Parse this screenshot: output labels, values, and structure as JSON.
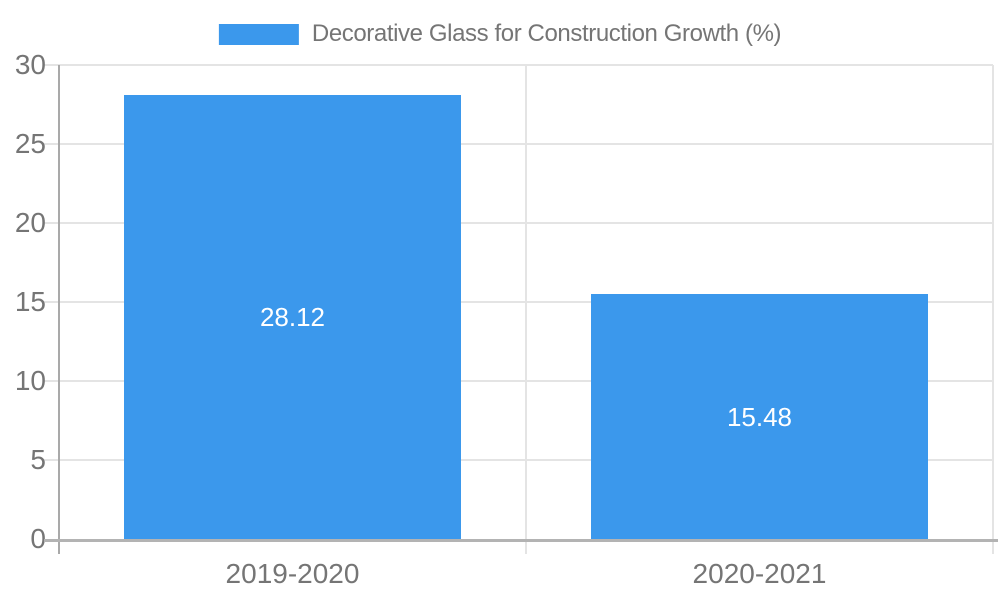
{
  "chart_data": {
    "type": "bar",
    "title": "Decorative Glass for Construction Growth (%)",
    "series_name": "Decorative Glass for Construction Growth (%)",
    "categories": [
      "2019-2020",
      "2020-2021"
    ],
    "values": [
      28.12,
      15.48
    ],
    "value_labels": [
      "28.12",
      "15.48"
    ],
    "xlabel": "",
    "ylabel": "",
    "ylim": [
      0,
      30
    ],
    "yticks": [
      0,
      5,
      10,
      15,
      20,
      25,
      30
    ],
    "grid": true,
    "legend_position": "top-center",
    "colors": {
      "bar": "#3B98EC",
      "bar_value_text": "#ffffff",
      "axis_text": "#757575",
      "gridline": "#e4e4e4",
      "y_axis_line": "#a9a9a9",
      "x_axis_line": "#b3b3b3",
      "background": "#ffffff"
    }
  }
}
